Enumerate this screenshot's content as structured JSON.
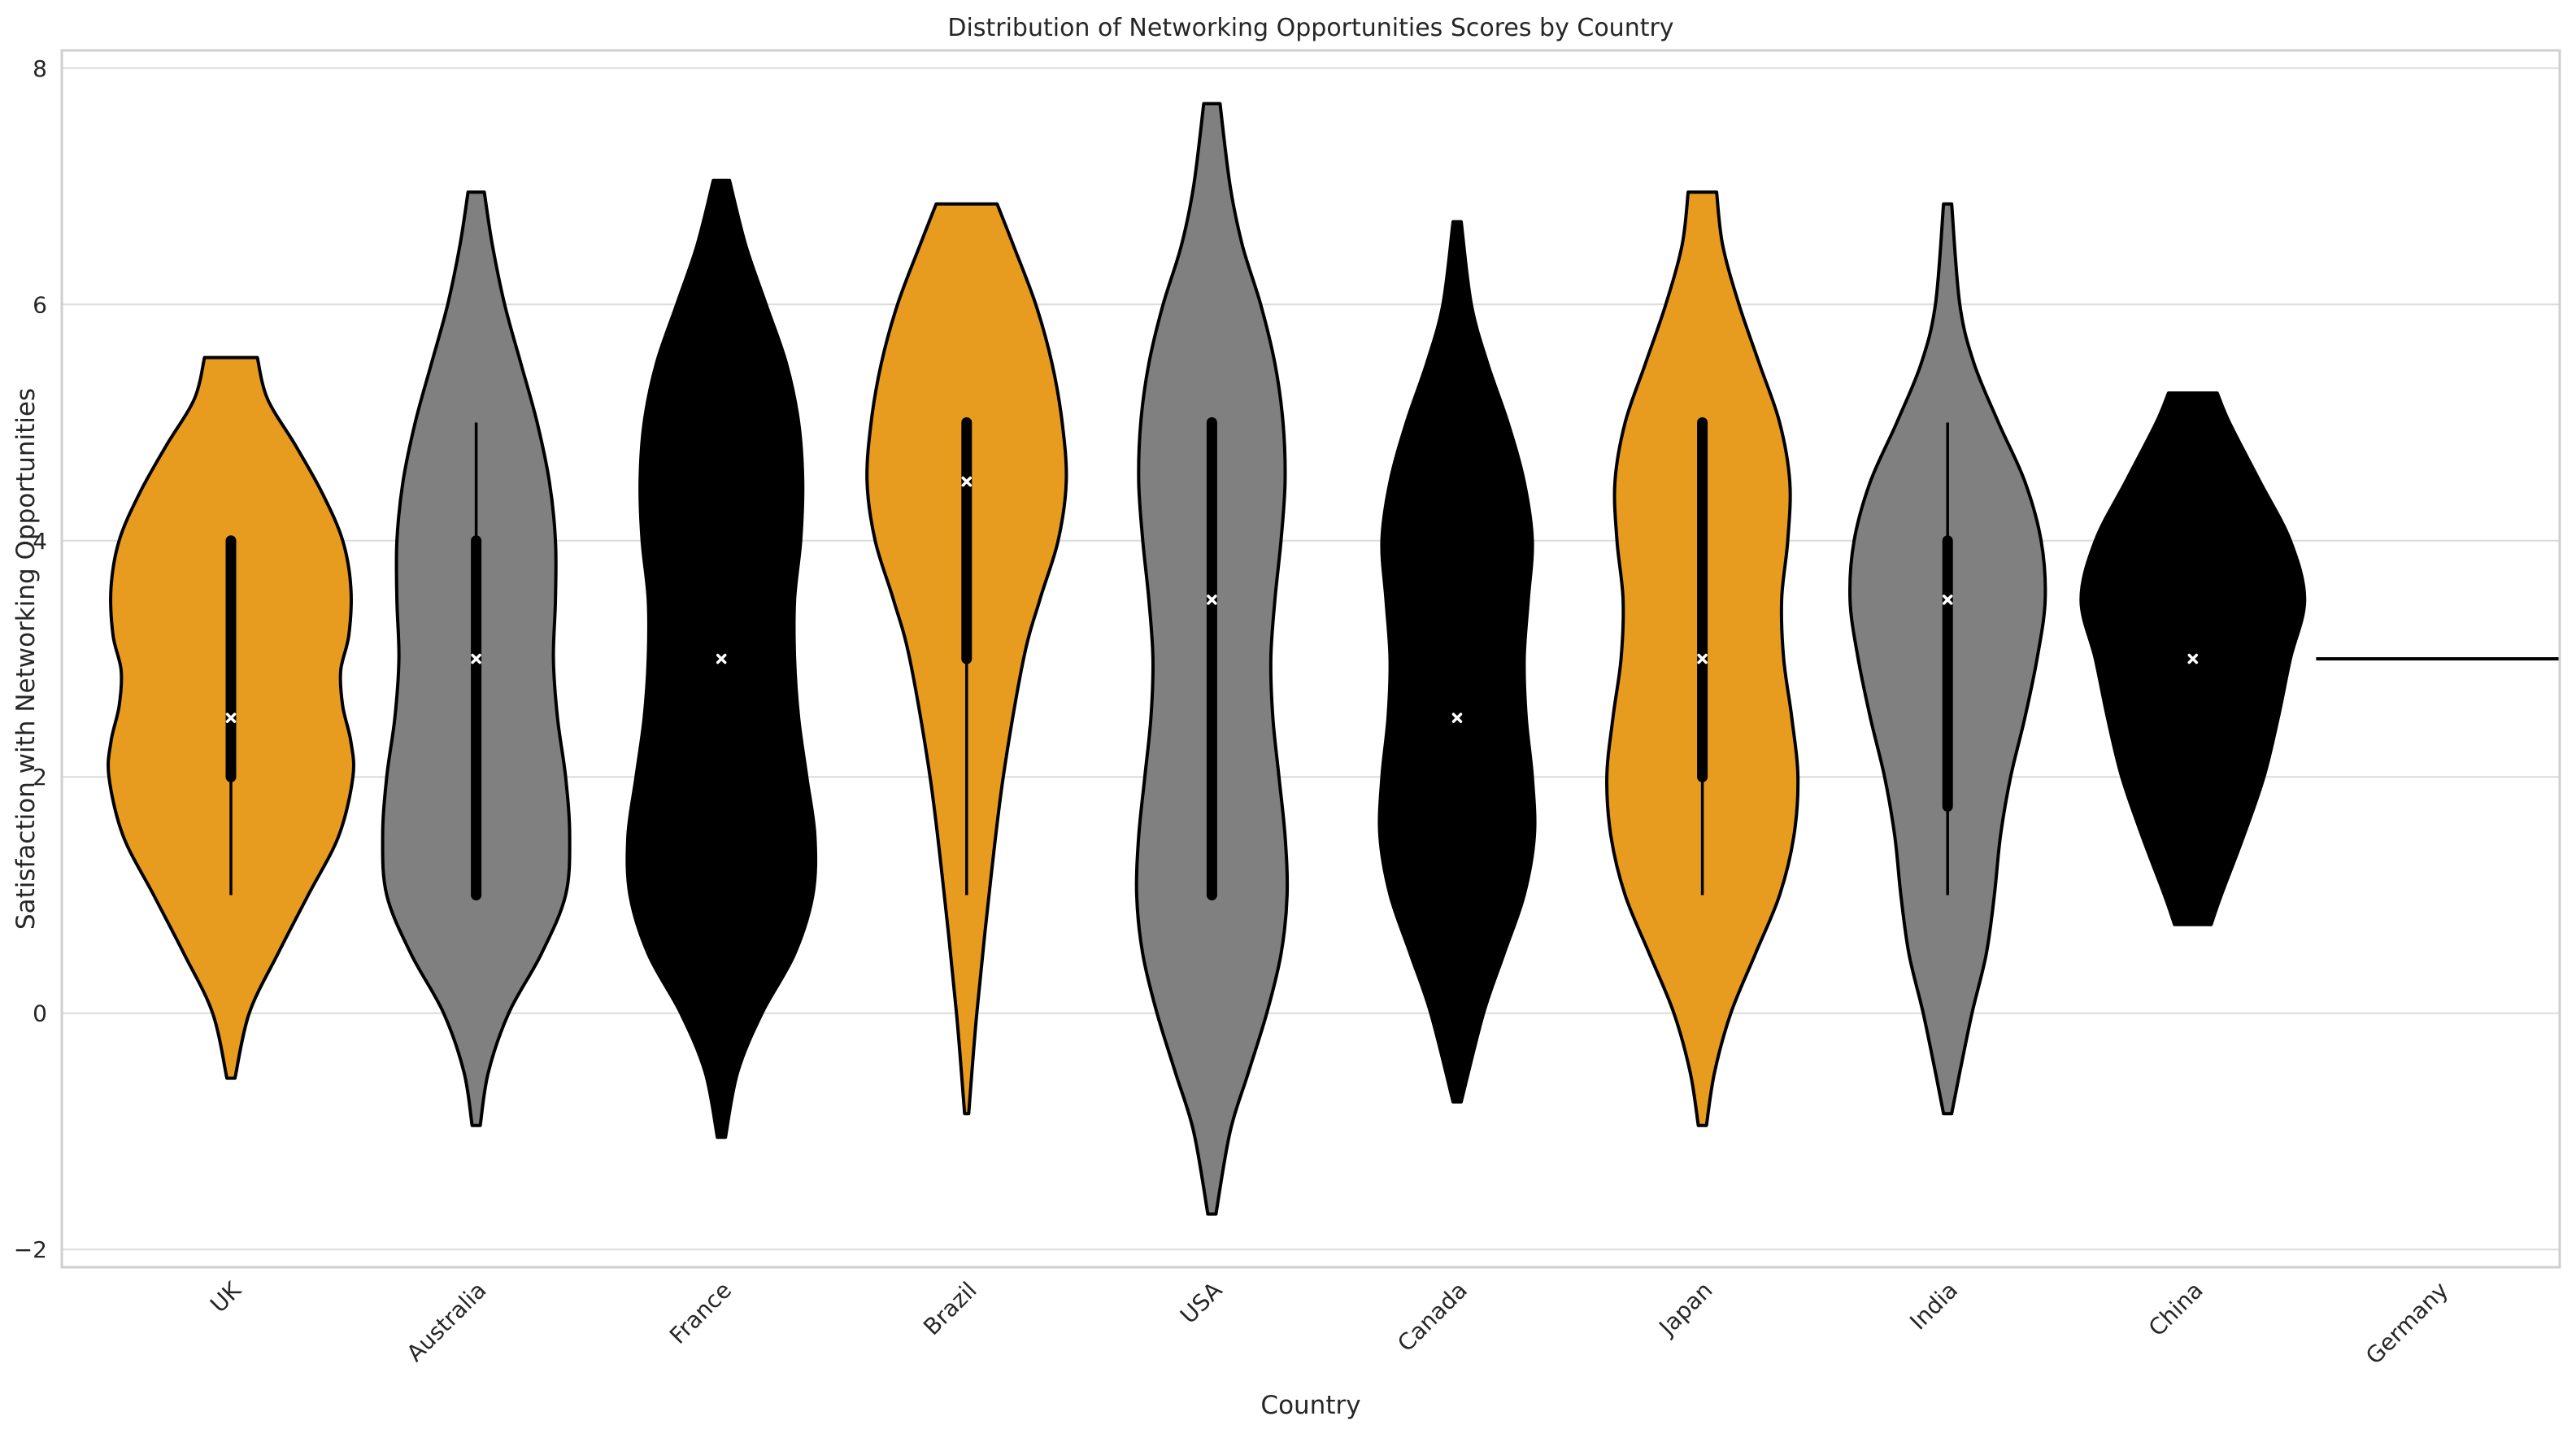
{
  "chart_data": {
    "type": "violin",
    "title": "Distribution of Networking Opportunities Scores by Country",
    "xlabel": "Country",
    "ylabel": "Satisfaction with Networking Opportunities",
    "ylim": [
      -2.15,
      8.15
    ],
    "yticks": [
      -2,
      0,
      2,
      4,
      6,
      8
    ],
    "ytick_labels": [
      "−2",
      "0",
      "2",
      "4",
      "6",
      "8"
    ],
    "grid": true,
    "categories": [
      "UK",
      "Australia",
      "France",
      "Brazil",
      "USA",
      "Canada",
      "Japan",
      "India",
      "China",
      "Germany"
    ],
    "colors": {
      "orange": "#e89c1f",
      "gray": "#808080",
      "black": "#000000",
      "outline": "#000000",
      "median_marker": "#ffffff"
    },
    "violins": [
      {
        "name": "UK",
        "color": "#e89c1f",
        "min": -0.55,
        "max": 5.55,
        "whisker": [
          1,
          4
        ],
        "q1": 2,
        "median": 2.5,
        "q3": 4,
        "profile": [
          [
            -0.55,
            0.02
          ],
          [
            0,
            0.09
          ],
          [
            0.5,
            0.23
          ],
          [
            1.0,
            0.38
          ],
          [
            1.5,
            0.53
          ],
          [
            2.0,
            0.6
          ],
          [
            2.3,
            0.59
          ],
          [
            2.6,
            0.55
          ],
          [
            2.9,
            0.54
          ],
          [
            3.2,
            0.58
          ],
          [
            3.6,
            0.59
          ],
          [
            4.0,
            0.55
          ],
          [
            4.4,
            0.45
          ],
          [
            4.8,
            0.32
          ],
          [
            5.2,
            0.18
          ],
          [
            5.55,
            0.13
          ]
        ]
      },
      {
        "name": "Australia",
        "color": "#808080",
        "min": -0.95,
        "max": 6.95,
        "whisker": [
          1,
          5
        ],
        "q1": 1,
        "median": 3,
        "q3": 4,
        "profile": [
          [
            -0.95,
            0.02
          ],
          [
            -0.5,
            0.06
          ],
          [
            0,
            0.16
          ],
          [
            0.5,
            0.32
          ],
          [
            1.0,
            0.44
          ],
          [
            1.5,
            0.46
          ],
          [
            2.0,
            0.44
          ],
          [
            2.5,
            0.4
          ],
          [
            3.0,
            0.38
          ],
          [
            3.5,
            0.39
          ],
          [
            4.0,
            0.39
          ],
          [
            4.5,
            0.36
          ],
          [
            5.0,
            0.3
          ],
          [
            5.5,
            0.22
          ],
          [
            6.0,
            0.14
          ],
          [
            6.5,
            0.08
          ],
          [
            6.95,
            0.04
          ]
        ]
      },
      {
        "name": "France",
        "color": "#000000",
        "min": -1.05,
        "max": 7.05,
        "whisker": null,
        "q1": null,
        "median": 3,
        "q3": null,
        "profile": [
          [
            -1.05,
            0.02
          ],
          [
            -0.5,
            0.08
          ],
          [
            0,
            0.2
          ],
          [
            0.5,
            0.36
          ],
          [
            1.0,
            0.45
          ],
          [
            1.5,
            0.46
          ],
          [
            2.0,
            0.42
          ],
          [
            2.5,
            0.38
          ],
          [
            3.0,
            0.36
          ],
          [
            3.5,
            0.36
          ],
          [
            4.0,
            0.39
          ],
          [
            4.5,
            0.4
          ],
          [
            5.0,
            0.38
          ],
          [
            5.5,
            0.32
          ],
          [
            6.0,
            0.22
          ],
          [
            6.5,
            0.12
          ],
          [
            7.05,
            0.04
          ]
        ]
      },
      {
        "name": "Brazil",
        "color": "#e89c1f",
        "min": -0.85,
        "max": 6.85,
        "whisker": [
          1,
          5
        ],
        "q1": 3,
        "median": 4.5,
        "q3": 5,
        "profile": [
          [
            -0.85,
            0.01
          ],
          [
            0,
            0.05
          ],
          [
            1.0,
            0.11
          ],
          [
            2.0,
            0.18
          ],
          [
            3.0,
            0.28
          ],
          [
            3.5,
            0.36
          ],
          [
            4.0,
            0.45
          ],
          [
            4.5,
            0.49
          ],
          [
            5.0,
            0.47
          ],
          [
            5.5,
            0.42
          ],
          [
            6.0,
            0.34
          ],
          [
            6.5,
            0.23
          ],
          [
            6.85,
            0.15
          ]
        ]
      },
      {
        "name": "USA",
        "color": "#808080",
        "min": -1.7,
        "max": 7.7,
        "whisker": [
          1,
          5
        ],
        "q1": 1,
        "median": 3.5,
        "q3": 5,
        "profile": [
          [
            -1.7,
            0.02
          ],
          [
            -1.0,
            0.09
          ],
          [
            -0.5,
            0.18
          ],
          [
            0,
            0.27
          ],
          [
            0.5,
            0.34
          ],
          [
            1.0,
            0.37
          ],
          [
            1.5,
            0.36
          ],
          [
            2.0,
            0.33
          ],
          [
            2.5,
            0.3
          ],
          [
            3.0,
            0.29
          ],
          [
            3.5,
            0.31
          ],
          [
            4.0,
            0.34
          ],
          [
            4.5,
            0.36
          ],
          [
            5.0,
            0.35
          ],
          [
            5.5,
            0.31
          ],
          [
            6.0,
            0.24
          ],
          [
            6.5,
            0.15
          ],
          [
            7.0,
            0.09
          ],
          [
            7.7,
            0.04
          ]
        ]
      },
      {
        "name": "Canada",
        "color": "#000000",
        "min": -0.75,
        "max": 6.7,
        "whisker": null,
        "q1": null,
        "median": 2.5,
        "q3": null,
        "profile": [
          [
            -0.75,
            0.02
          ],
          [
            0,
            0.13
          ],
          [
            0.5,
            0.23
          ],
          [
            1.0,
            0.33
          ],
          [
            1.5,
            0.38
          ],
          [
            2.0,
            0.37
          ],
          [
            2.5,
            0.34
          ],
          [
            3.0,
            0.33
          ],
          [
            3.5,
            0.35
          ],
          [
            4.0,
            0.37
          ],
          [
            4.5,
            0.33
          ],
          [
            5.0,
            0.25
          ],
          [
            5.5,
            0.15
          ],
          [
            6.0,
            0.07
          ],
          [
            6.7,
            0.02
          ]
        ]
      },
      {
        "name": "Japan",
        "color": "#e89c1f",
        "min": -0.95,
        "max": 6.95,
        "whisker": [
          1,
          5
        ],
        "q1": 2,
        "median": 3,
        "q3": 5,
        "profile": [
          [
            -0.95,
            0.02
          ],
          [
            -0.5,
            0.06
          ],
          [
            0,
            0.14
          ],
          [
            0.5,
            0.26
          ],
          [
            1.0,
            0.38
          ],
          [
            1.5,
            0.45
          ],
          [
            2.0,
            0.47
          ],
          [
            2.5,
            0.44
          ],
          [
            3.0,
            0.4
          ],
          [
            3.5,
            0.39
          ],
          [
            4.0,
            0.42
          ],
          [
            4.5,
            0.43
          ],
          [
            5.0,
            0.38
          ],
          [
            5.5,
            0.28
          ],
          [
            6.0,
            0.18
          ],
          [
            6.5,
            0.1
          ],
          [
            6.95,
            0.07
          ]
        ]
      },
      {
        "name": "India",
        "color": "#808080",
        "min": -0.85,
        "max": 6.85,
        "whisker": [
          1,
          5
        ],
        "q1": 1.75,
        "median": 3.5,
        "q3": 4,
        "profile": [
          [
            -0.85,
            0.02
          ],
          [
            -0.5,
            0.06
          ],
          [
            0,
            0.12
          ],
          [
            0.5,
            0.19
          ],
          [
            1.0,
            0.23
          ],
          [
            1.5,
            0.26
          ],
          [
            2.0,
            0.31
          ],
          [
            2.5,
            0.38
          ],
          [
            3.0,
            0.44
          ],
          [
            3.5,
            0.48
          ],
          [
            4.0,
            0.46
          ],
          [
            4.5,
            0.38
          ],
          [
            5.0,
            0.25
          ],
          [
            5.5,
            0.13
          ],
          [
            6.0,
            0.06
          ],
          [
            6.85,
            0.02
          ]
        ]
      },
      {
        "name": "China",
        "color": "#000000",
        "min": 0.75,
        "max": 5.25,
        "whisker": null,
        "q1": null,
        "median": 3,
        "q3": null,
        "profile": [
          [
            0.75,
            0.09
          ],
          [
            1.0,
            0.14
          ],
          [
            1.5,
            0.25
          ],
          [
            2.0,
            0.35
          ],
          [
            2.5,
            0.42
          ],
          [
            3.0,
            0.48
          ],
          [
            3.5,
            0.55
          ],
          [
            4.0,
            0.48
          ],
          [
            4.5,
            0.33
          ],
          [
            5.0,
            0.18
          ],
          [
            5.25,
            0.12
          ]
        ]
      },
      {
        "name": "Germany",
        "color": "#000000",
        "min": 3,
        "max": 3,
        "whisker": null,
        "q1": null,
        "median": 3,
        "q3": null,
        "profile": []
      }
    ]
  }
}
